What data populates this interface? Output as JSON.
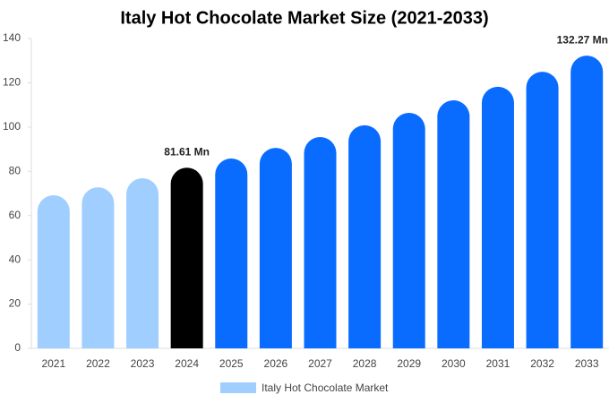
{
  "chart_data": {
    "type": "bar",
    "title": "Italy Hot Chocolate Market Size (2021-2033)",
    "categories": [
      "2021",
      "2022",
      "2023",
      "2024",
      "2025",
      "2026",
      "2027",
      "2028",
      "2029",
      "2030",
      "2031",
      "2032",
      "2033"
    ],
    "series": [
      {
        "name": "Italy Hot Chocolate Market",
        "color": "#a0cfff",
        "values": [
          69.2,
          72.8,
          76.9,
          81.61,
          85.8,
          90.6,
          95.5,
          100.8,
          106.4,
          112.1,
          118.2,
          125.0,
          132.27
        ],
        "value_labels": [
          null,
          null,
          null,
          "81.61 Mn",
          null,
          null,
          null,
          null,
          null,
          null,
          null,
          null,
          "132.27 Mn"
        ],
        "colors": [
          "#a0cfff",
          "#a0cfff",
          "#a0cfff",
          "#000000",
          "#0a6cff",
          "#0a6cff",
          "#0a6cff",
          "#0a6cff",
          "#0a6cff",
          "#0a6cff",
          "#0a6cff",
          "#0a6cff",
          "#0a6cff"
        ]
      }
    ],
    "ylim": [
      0,
      140
    ],
    "yticks": [
      0,
      20,
      40,
      60,
      80,
      100,
      120,
      140
    ],
    "grid": false
  }
}
